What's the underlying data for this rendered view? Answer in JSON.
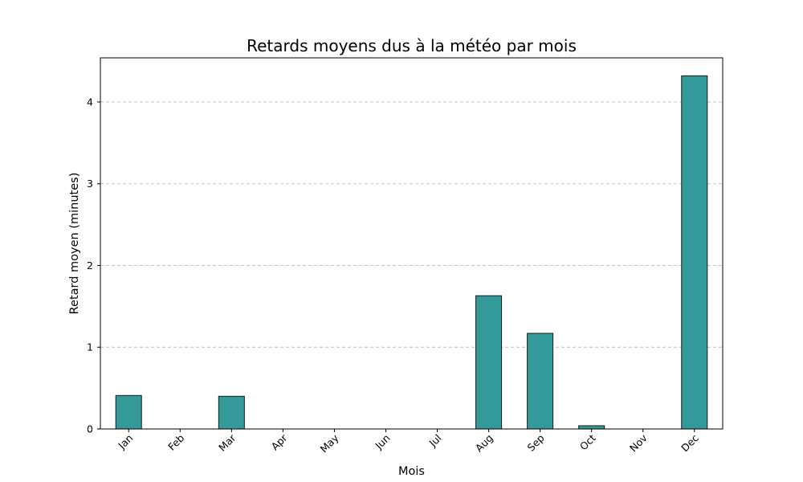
{
  "chart_data": {
    "type": "bar",
    "title": "Retards moyens dus à la météo par mois",
    "xlabel": "Mois",
    "ylabel": "Retard moyen (minutes)",
    "categories": [
      "Jan",
      "Feb",
      "Mar",
      "Apr",
      "May",
      "Jun",
      "Jul",
      "Aug",
      "Sep",
      "Oct",
      "Nov",
      "Dec"
    ],
    "values": [
      0.41,
      0.0,
      0.4,
      0.0,
      0.0,
      0.0,
      0.0,
      1.63,
      1.17,
      0.04,
      0.0,
      4.32
    ],
    "ylim": [
      0,
      4.54
    ],
    "yticks": [
      0,
      1,
      2,
      3,
      4
    ],
    "grid": "y-dashed",
    "bar_color": "#339999",
    "bar_edge_color": "#1a1a1a",
    "xtick_rotation": 45
  }
}
